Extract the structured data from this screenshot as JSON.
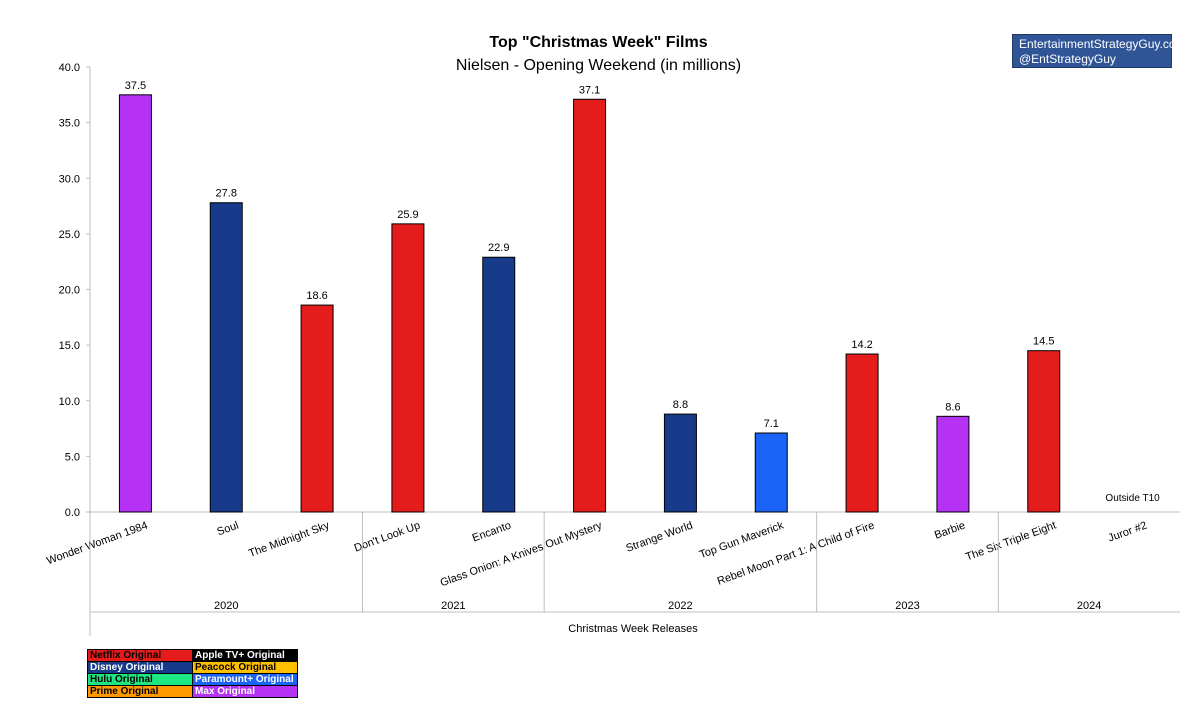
{
  "title": "Top \"Christmas Week\" Films",
  "subtitle": "Nielsen - Opening Weekend (in millions)",
  "brand": {
    "line1": "EntertainmentStrategyGuy.com",
    "line2": "@EntStrategyGuy"
  },
  "chart_data": {
    "type": "bar",
    "categories": [
      "Wonder Woman 1984",
      "Soul",
      "The Midnight Sky",
      "Don't Look Up",
      "Encanto",
      "Glass Onion: A Knives Out Mystery",
      "Strange World",
      "Top Gun Maverick",
      "Rebel Moon Part 1: A Child of Fire",
      "Barbie",
      "The Six Triple Eight",
      "Juror #2"
    ],
    "values": [
      37.5,
      27.8,
      18.6,
      25.9,
      22.9,
      37.1,
      8.8,
      7.1,
      14.2,
      8.6,
      14.5,
      null
    ],
    "data_labels": [
      "37.5",
      "27.8",
      "18.6",
      "25.9",
      "22.9",
      "37.1",
      "8.8",
      "7.1",
      "14.2",
      "8.6",
      "14.5",
      ""
    ],
    "bar_colors": [
      "#b532f5",
      "#173a8a",
      "#e51c1c",
      "#e51c1c",
      "#173a8a",
      "#e51c1c",
      "#173a8a",
      "#1b62f7",
      "#e51c1c",
      "#b532f5",
      "#e51c1c",
      "#ffffff"
    ],
    "annotation": "Outside T10",
    "groups": [
      {
        "label": "2020",
        "count": 3
      },
      {
        "label": "2021",
        "count": 2
      },
      {
        "label": "2022",
        "count": 3
      },
      {
        "label": "2023",
        "count": 2
      },
      {
        "label": "2024",
        "count": 2
      }
    ],
    "xlabel": "Christmas Week Releases",
    "ylim": [
      0,
      40
    ],
    "yticks": [
      "0.0",
      "5.0",
      "10.0",
      "15.0",
      "20.0",
      "25.0",
      "30.0",
      "35.0",
      "40.0"
    ],
    "grid": false
  },
  "legend": [
    {
      "label": "Netflix Original",
      "color": "#e51c1c",
      "text_color": "#000000"
    },
    {
      "label": "Apple TV+ Original",
      "color": "#000000",
      "text_color": "#ffffff"
    },
    {
      "label": "Disney Original",
      "color": "#173a8a",
      "text_color": "#ffffff"
    },
    {
      "label": "Peacock Original",
      "color": "#ffc000",
      "text_color": "#000000"
    },
    {
      "label": "Hulu Original",
      "color": "#1ce783",
      "text_color": "#000000"
    },
    {
      "label": "Paramount+ Original",
      "color": "#1b62f7",
      "text_color": "#ffffff"
    },
    {
      "label": "Prime Original",
      "color": "#ff9900",
      "text_color": "#000000"
    },
    {
      "label": "Max Original",
      "color": "#b532f5",
      "text_color": "#ffffff"
    }
  ]
}
